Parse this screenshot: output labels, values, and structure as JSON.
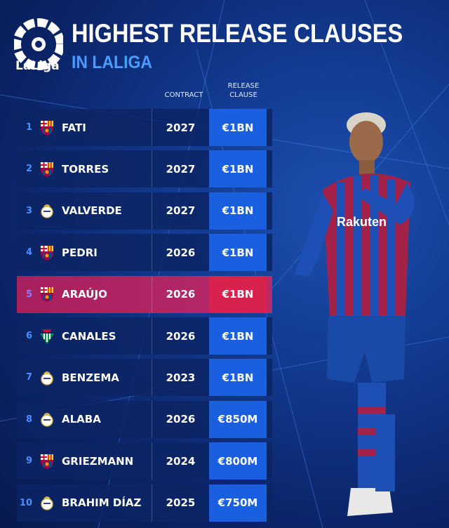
{
  "header": {
    "logo_text": "LaLiga",
    "title": "HIGHEST RELEASE CLAUSES",
    "subtitle": "IN LALIGA"
  },
  "columns": {
    "contract": "CONTRACT",
    "release_clause_line1": "RELEASE",
    "release_clause_line2": "CLAUSE"
  },
  "colors": {
    "accent": "#4d9bff",
    "clause_cell": "#1a5fe0",
    "highlight": "#b72a6a",
    "highlight_clause": "#d8224e"
  },
  "rows": [
    {
      "rank": "1",
      "club": "barcelona",
      "name": "FATI",
      "contract": "2027",
      "clause": "€1BN"
    },
    {
      "rank": "2",
      "club": "barcelona",
      "name": "TORRES",
      "contract": "2027",
      "clause": "€1BN"
    },
    {
      "rank": "3",
      "club": "real-madrid",
      "name": "VALVERDE",
      "contract": "2027",
      "clause": "€1BN"
    },
    {
      "rank": "4",
      "club": "barcelona",
      "name": "PEDRI",
      "contract": "2026",
      "clause": "€1BN"
    },
    {
      "rank": "5",
      "club": "barcelona",
      "name": "ARAÚJO",
      "contract": "2026",
      "clause": "€1BN",
      "highlight": true
    },
    {
      "rank": "6",
      "club": "real-betis",
      "name": "CANALES",
      "contract": "2026",
      "clause": "€1BN"
    },
    {
      "rank": "7",
      "club": "real-madrid",
      "name": "BENZEMA",
      "contract": "2023",
      "clause": "€1BN"
    },
    {
      "rank": "8",
      "club": "real-madrid",
      "name": "ALABA",
      "contract": "2026",
      "clause": "€850M"
    },
    {
      "rank": "9",
      "club": "barcelona",
      "name": "GRIEZMANN",
      "contract": "2024",
      "clause": "€800M"
    },
    {
      "rank": "10",
      "club": "real-madrid",
      "name": "BRAHIM DÍAZ",
      "contract": "2025",
      "clause": "€750M"
    }
  ],
  "player_shirt_text": "Rakuten"
}
